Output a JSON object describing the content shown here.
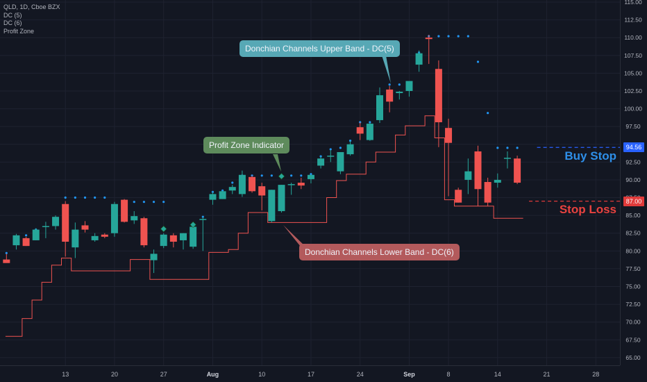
{
  "legend": {
    "symbol": "QLD, 1D, Cboe BZX",
    "indicators": [
      "DC (5)",
      "DC (6)",
      "Profit Zone"
    ]
  },
  "annotations": {
    "upper_band": "Donchian Channels Upper Band - DC(5)",
    "profit_zone": "Profit Zone Indicator",
    "lower_band": "Donchian Channels Lower Band - DC(6)",
    "buy_stop": "Buy Stop",
    "stop_loss": "Stop Loss"
  },
  "colors": {
    "background": "#131722",
    "up": "#26a69a",
    "down": "#ef5350",
    "upper_band": "#2196f3",
    "lower_band": "#ef5350",
    "profit_zone": "#26a69a",
    "buy_stop": "#2962ff",
    "stop_loss": "#e03a3a",
    "grid": "#1e2230",
    "axis_text": "#b2b5be"
  },
  "chart_data": {
    "type": "candlestick",
    "title": "QLD, 1D, Cboe BZX",
    "ylim": [
      64,
      116
    ],
    "y_ticks": [
      65,
      67.5,
      70,
      72.5,
      75,
      77.5,
      80,
      82.5,
      85,
      87.5,
      90,
      92.5,
      95,
      97.5,
      100,
      102.5,
      105,
      107.5,
      110,
      112.5,
      115
    ],
    "y_tick_labels": [
      "65.00",
      "67.50",
      "70.00",
      "72.50",
      "75.00",
      "77.50",
      "80.00",
      "82.50",
      "85.00",
      "87.50",
      "90.00",
      "92.50",
      "95.00",
      "97.50",
      "100.00",
      "102.50",
      "105.00",
      "107.50",
      "110.00",
      "112.50",
      "115.00"
    ],
    "x_ticks": [
      {
        "index": 6,
        "label": "13"
      },
      {
        "index": 11,
        "label": "20"
      },
      {
        "index": 16,
        "label": "27"
      },
      {
        "index": 21,
        "label": "Aug"
      },
      {
        "index": 26,
        "label": "10"
      },
      {
        "index": 31,
        "label": "17"
      },
      {
        "index": 36,
        "label": "24"
      },
      {
        "index": 41,
        "label": "Sep"
      },
      {
        "index": 45,
        "label": "8"
      },
      {
        "index": 50,
        "label": "14"
      },
      {
        "index": 55,
        "label": "21"
      },
      {
        "index": 60,
        "label": "28"
      }
    ],
    "candles": [
      {
        "o": 78.8,
        "h": 79.6,
        "l": 78.4,
        "c": 78.3
      },
      {
        "o": 80.8,
        "h": 82.4,
        "l": 80.2,
        "c": 82.2
      },
      {
        "o": 81.8,
        "h": 82.0,
        "l": 80.7,
        "c": 80.7
      },
      {
        "o": 81.5,
        "h": 83.2,
        "l": 81.5,
        "c": 83.0
      },
      {
        "o": 83.4,
        "h": 84.1,
        "l": 81.8,
        "c": 83.5
      },
      {
        "o": 83.5,
        "h": 85.0,
        "l": 83.0,
        "c": 84.8
      },
      {
        "o": 86.6,
        "h": 87.0,
        "l": 79.2,
        "c": 81.3
      },
      {
        "o": 80.5,
        "h": 84.0,
        "l": 79.0,
        "c": 83.0
      },
      {
        "o": 83.6,
        "h": 84.2,
        "l": 82.6,
        "c": 83.0
      },
      {
        "o": 81.5,
        "h": 82.5,
        "l": 81.3,
        "c": 82.1
      },
      {
        "o": 82.3,
        "h": 82.5,
        "l": 81.8,
        "c": 82.0
      },
      {
        "o": 82.5,
        "h": 86.9,
        "l": 82.0,
        "c": 86.6
      },
      {
        "o": 87.2,
        "h": 87.3,
        "l": 84.0,
        "c": 84.1
      },
      {
        "o": 84.3,
        "h": 85.6,
        "l": 83.8,
        "c": 84.9
      },
      {
        "o": 84.6,
        "h": 84.8,
        "l": 80.5,
        "c": 80.8
      },
      {
        "o": 78.7,
        "h": 80.2,
        "l": 76.9,
        "c": 79.6
      },
      {
        "o": 80.7,
        "h": 82.5,
        "l": 80.4,
        "c": 82.3
      },
      {
        "o": 82.2,
        "h": 82.5,
        "l": 80.5,
        "c": 81.3
      },
      {
        "o": 81.5,
        "h": 82.5,
        "l": 80.2,
        "c": 82.5
      },
      {
        "o": 80.6,
        "h": 83.7,
        "l": 80.3,
        "c": 83.4
      },
      {
        "o": 84.5,
        "h": 84.8,
        "l": 80.0,
        "c": 84.5
      },
      {
        "o": 87.2,
        "h": 88.3,
        "l": 86.5,
        "c": 88.0
      },
      {
        "o": 87.3,
        "h": 88.5,
        "l": 87.3,
        "c": 88.4
      },
      {
        "o": 88.5,
        "h": 89.3,
        "l": 88.0,
        "c": 89.0
      },
      {
        "o": 88.0,
        "h": 91.3,
        "l": 87.6,
        "c": 90.7
      },
      {
        "o": 90.4,
        "h": 90.6,
        "l": 88.2,
        "c": 88.4
      },
      {
        "o": 89.1,
        "h": 89.6,
        "l": 85.7,
        "c": 87.8
      },
      {
        "o": 84.2,
        "h": 88.6,
        "l": 84.0,
        "c": 88.6
      },
      {
        "o": 85.6,
        "h": 89.3,
        "l": 85.4,
        "c": 89.3
      },
      {
        "o": 89.4,
        "h": 89.6,
        "l": 87.9,
        "c": 89.4
      },
      {
        "o": 89.6,
        "h": 90.3,
        "l": 88.7,
        "c": 89.2
      },
      {
        "o": 90.1,
        "h": 90.7,
        "l": 89.5,
        "c": 90.7
      },
      {
        "o": 92.0,
        "h": 93.3,
        "l": 91.6,
        "c": 93.0
      },
      {
        "o": 93.4,
        "h": 94.2,
        "l": 92.5,
        "c": 93.4
      },
      {
        "o": 91.2,
        "h": 93.8,
        "l": 90.8,
        "c": 93.9
      },
      {
        "o": 93.6,
        "h": 95.5,
        "l": 93.4,
        "c": 95.0
      },
      {
        "o": 97.4,
        "h": 98.1,
        "l": 95.6,
        "c": 96.5
      },
      {
        "o": 95.6,
        "h": 98.0,
        "l": 95.5,
        "c": 97.9
      },
      {
        "o": 98.4,
        "h": 103.0,
        "l": 98.0,
        "c": 101.9
      },
      {
        "o": 102.7,
        "h": 103.2,
        "l": 99.5,
        "c": 101.0
      },
      {
        "o": 102.2,
        "h": 102.5,
        "l": 101.3,
        "c": 102.4
      },
      {
        "o": 102.5,
        "h": 103.4,
        "l": 101.7,
        "c": 103.9
      },
      {
        "o": 106.2,
        "h": 108.2,
        "l": 105.2,
        "c": 107.8
      },
      {
        "o": 110.0,
        "h": 110.4,
        "l": 106.3,
        "c": 109.8
      },
      {
        "o": 105.6,
        "h": 106.8,
        "l": 94.6,
        "c": 98.1
      },
      {
        "o": 97.3,
        "h": 98.6,
        "l": 87.7,
        "c": 95.2
      },
      {
        "o": 88.6,
        "h": 88.9,
        "l": 86.8,
        "c": 86.8
      },
      {
        "o": 90.0,
        "h": 93.0,
        "l": 88.0,
        "c": 91.2
      },
      {
        "o": 94.0,
        "h": 94.8,
        "l": 86.3,
        "c": 88.7
      },
      {
        "o": 89.7,
        "h": 90.3,
        "l": 86.3,
        "c": 86.8
      },
      {
        "o": 89.6,
        "h": 90.9,
        "l": 88.9,
        "c": 90.0
      },
      {
        "o": 93.0,
        "h": 94.0,
        "l": 91.6,
        "c": 93.1
      },
      {
        "o": 93.0,
        "h": 93.4,
        "l": 89.4,
        "c": 89.6
      }
    ],
    "upper_band": [
      {
        "i": 0,
        "v": 79.7
      },
      {
        "i": 1,
        "v": 81.5
      },
      {
        "i": 2,
        "v": 82.2
      },
      {
        "i": 3,
        "v": 83.0
      },
      {
        "i": 6,
        "v": 87.5
      },
      {
        "i": 7,
        "v": 87.5
      },
      {
        "i": 8,
        "v": 87.5
      },
      {
        "i": 9,
        "v": 87.5
      },
      {
        "i": 10,
        "v": 87.5
      },
      {
        "i": 12,
        "v": 86.9
      },
      {
        "i": 13,
        "v": 86.9
      },
      {
        "i": 14,
        "v": 86.9
      },
      {
        "i": 15,
        "v": 86.9
      },
      {
        "i": 16,
        "v": 86.9
      },
      {
        "i": 20,
        "v": 84.8
      },
      {
        "i": 21,
        "v": 88.3
      },
      {
        "i": 22,
        "v": 88.5
      },
      {
        "i": 23,
        "v": 89.6
      },
      {
        "i": 24,
        "v": 90.6
      },
      {
        "i": 25,
        "v": 90.6
      },
      {
        "i": 26,
        "v": 90.6
      },
      {
        "i": 27,
        "v": 90.6
      },
      {
        "i": 28,
        "v": 90.6
      },
      {
        "i": 29,
        "v": 90.6
      },
      {
        "i": 30,
        "v": 90.6
      },
      {
        "i": 31,
        "v": 90.8
      },
      {
        "i": 32,
        "v": 93.3
      },
      {
        "i": 33,
        "v": 94.3
      },
      {
        "i": 34,
        "v": 94.5
      },
      {
        "i": 35,
        "v": 95.5
      },
      {
        "i": 36,
        "v": 98.1
      },
      {
        "i": 37,
        "v": 98.1
      },
      {
        "i": 38,
        "v": 100.1
      },
      {
        "i": 39,
        "v": 103.4
      },
      {
        "i": 40,
        "v": 103.4
      },
      {
        "i": 41,
        "v": 103.4
      },
      {
        "i": 42,
        "v": 107.9
      },
      {
        "i": 43,
        "v": 110.2
      },
      {
        "i": 44,
        "v": 110.2
      },
      {
        "i": 45,
        "v": 110.2
      },
      {
        "i": 46,
        "v": 110.2
      },
      {
        "i": 47,
        "v": 110.2
      },
      {
        "i": 48,
        "v": 106.6
      },
      {
        "i": 49,
        "v": 99.4
      },
      {
        "i": 50,
        "v": 94.5
      },
      {
        "i": 51,
        "v": 94.5
      },
      {
        "i": 52,
        "v": 94.5
      }
    ],
    "lower_band": [
      {
        "i": -0.1,
        "v": 68.0
      },
      {
        "i": 1.6,
        "v": 68.0
      },
      {
        "i": 1.6,
        "v": 70.5
      },
      {
        "i": 2.6,
        "v": 70.5
      },
      {
        "i": 2.6,
        "v": 73.1
      },
      {
        "i": 3.6,
        "v": 73.1
      },
      {
        "i": 3.6,
        "v": 75.6
      },
      {
        "i": 4.6,
        "v": 75.6
      },
      {
        "i": 4.6,
        "v": 78.0
      },
      {
        "i": 5.6,
        "v": 78.0
      },
      {
        "i": 5.6,
        "v": 79.0
      },
      {
        "i": 6.6,
        "v": 79.0
      },
      {
        "i": 6.6,
        "v": 77.2
      },
      {
        "i": 12.6,
        "v": 77.2
      },
      {
        "i": 12.6,
        "v": 78.8
      },
      {
        "i": 14.6,
        "v": 78.8
      },
      {
        "i": 14.6,
        "v": 76.0
      },
      {
        "i": 20.6,
        "v": 76.0
      },
      {
        "i": 20.6,
        "v": 79.8
      },
      {
        "i": 22.6,
        "v": 79.8
      },
      {
        "i": 22.6,
        "v": 80.2
      },
      {
        "i": 23.6,
        "v": 80.2
      },
      {
        "i": 23.6,
        "v": 82.5
      },
      {
        "i": 24.6,
        "v": 82.5
      },
      {
        "i": 24.6,
        "v": 85.4
      },
      {
        "i": 26.6,
        "v": 85.4
      },
      {
        "i": 26.6,
        "v": 84.0
      },
      {
        "i": 32.6,
        "v": 84.0
      },
      {
        "i": 32.6,
        "v": 87.5
      },
      {
        "i": 33.6,
        "v": 87.5
      },
      {
        "i": 33.6,
        "v": 89.9
      },
      {
        "i": 34.6,
        "v": 89.9
      },
      {
        "i": 34.6,
        "v": 90.8
      },
      {
        "i": 36.6,
        "v": 90.8
      },
      {
        "i": 36.6,
        "v": 92.5
      },
      {
        "i": 37.6,
        "v": 92.5
      },
      {
        "i": 37.6,
        "v": 93.9
      },
      {
        "i": 39.6,
        "v": 93.9
      },
      {
        "i": 39.6,
        "v": 96.3
      },
      {
        "i": 40.6,
        "v": 96.3
      },
      {
        "i": 40.6,
        "v": 97.6
      },
      {
        "i": 42.6,
        "v": 97.6
      },
      {
        "i": 42.6,
        "v": 99.0
      },
      {
        "i": 43.6,
        "v": 99.0
      },
      {
        "i": 43.6,
        "v": 95.9
      },
      {
        "i": 44.6,
        "v": 95.9
      },
      {
        "i": 44.6,
        "v": 87.2
      },
      {
        "i": 45.6,
        "v": 87.2
      },
      {
        "i": 45.6,
        "v": 86.3
      },
      {
        "i": 49.6,
        "v": 86.3
      },
      {
        "i": 49.6,
        "v": 84.6
      },
      {
        "i": 52.6,
        "v": 84.6
      }
    ],
    "profit_zone_markers": [
      {
        "i": 16,
        "v": 83.1
      },
      {
        "i": 19,
        "v": 83.7
      },
      {
        "i": 28,
        "v": 90.5
      }
    ],
    "buy_stop": {
      "label": "94.56",
      "value": 94.56,
      "from_index": 52.6
    },
    "stop_loss": {
      "label": "87.00",
      "value": 87.0,
      "from_index": 53.2
    }
  }
}
